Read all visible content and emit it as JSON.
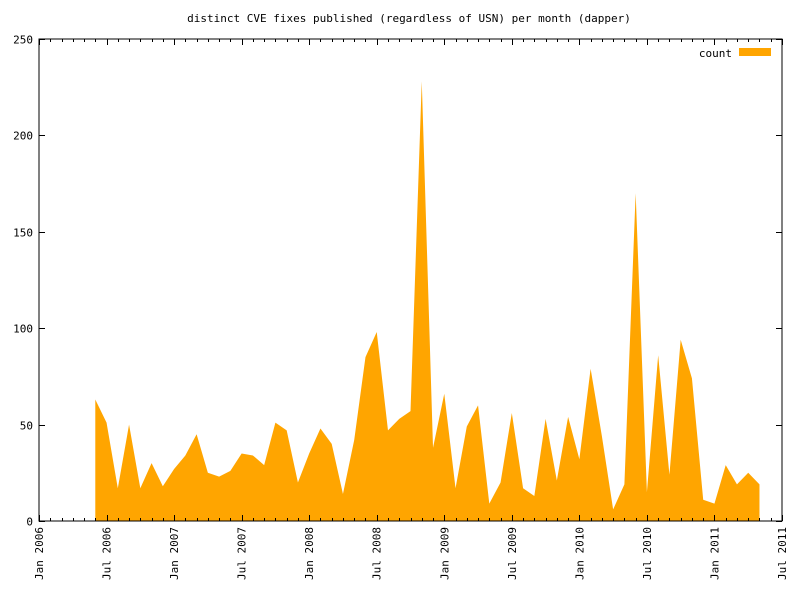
{
  "chart_data": {
    "type": "area",
    "title": "distinct CVE fixes published (regardless of USN) per month (dapper)",
    "xlabel": "",
    "ylabel": "",
    "xlim": [
      "2006-01",
      "2011-07"
    ],
    "ylim": [
      0,
      250
    ],
    "y_ticks": [
      0,
      50,
      100,
      150,
      200,
      250
    ],
    "x_ticks": [
      "2006-01",
      "2006-07",
      "2007-01",
      "2007-07",
      "2008-01",
      "2008-07",
      "2009-01",
      "2009-07",
      "2010-01",
      "2010-07",
      "2011-01",
      "2011-07"
    ],
    "x_tick_labels": [
      "Jan 2006",
      "Jul 2006",
      "Jan 2007",
      "Jul 2007",
      "Jan 2008",
      "Jul 2008",
      "Jan 2009",
      "Jul 2009",
      "Jan 2010",
      "Jul 2010",
      "Jan 2011",
      "Jul 2011"
    ],
    "grid": false,
    "legend_position": "top-right",
    "color": "#ffa500",
    "series": [
      {
        "name": "count",
        "color": "#ffa500",
        "x": [
          "2006-06",
          "2006-07",
          "2006-08",
          "2006-09",
          "2006-10",
          "2006-11",
          "2006-12",
          "2007-01",
          "2007-02",
          "2007-03",
          "2007-04",
          "2007-05",
          "2007-06",
          "2007-07",
          "2007-08",
          "2007-09",
          "2007-10",
          "2007-11",
          "2007-12",
          "2008-01",
          "2008-02",
          "2008-03",
          "2008-04",
          "2008-05",
          "2008-06",
          "2008-07",
          "2008-08",
          "2008-09",
          "2008-10",
          "2008-11",
          "2008-12",
          "2009-01",
          "2009-02",
          "2009-03",
          "2009-04",
          "2009-05",
          "2009-06",
          "2009-07",
          "2009-08",
          "2009-09",
          "2009-10",
          "2009-11",
          "2009-12",
          "2010-01",
          "2010-02",
          "2010-03",
          "2010-04",
          "2010-05",
          "2010-06",
          "2010-07",
          "2010-08",
          "2010-09",
          "2010-10",
          "2010-11",
          "2010-12",
          "2011-01",
          "2011-02",
          "2011-03",
          "2011-04",
          "2011-05"
        ],
        "values": [
          63,
          51,
          17,
          50,
          17,
          30,
          18,
          27,
          34,
          45,
          25,
          23,
          26,
          35,
          34,
          29,
          51,
          47,
          20,
          35,
          48,
          40,
          14,
          42,
          85,
          98,
          47,
          53,
          57,
          228,
          38,
          66,
          17,
          49,
          60,
          9,
          20,
          56,
          17,
          13,
          53,
          21,
          54,
          32,
          79,
          44,
          6,
          19,
          170,
          15,
          86,
          24,
          94,
          74,
          11,
          9,
          29,
          19,
          25,
          19
        ]
      }
    ]
  }
}
